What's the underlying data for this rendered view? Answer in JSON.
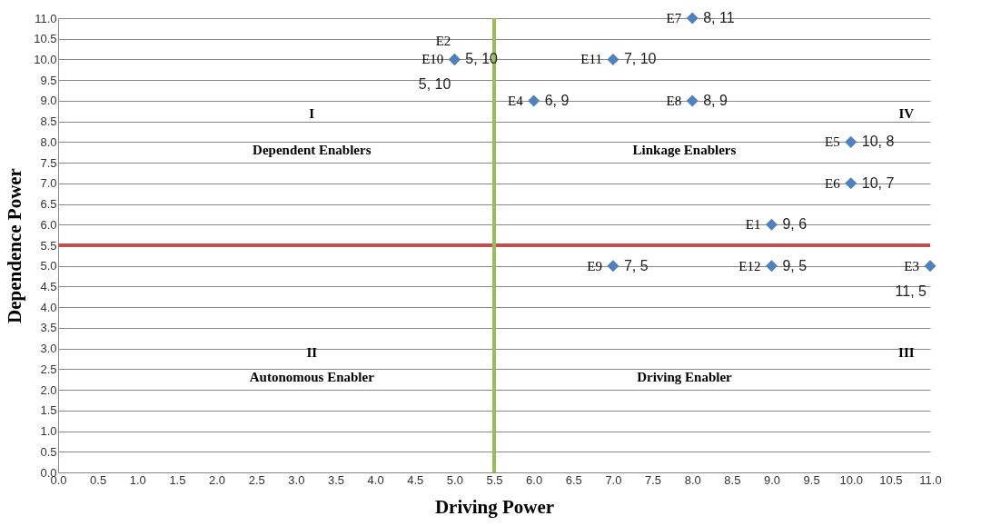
{
  "chart_data": {
    "type": "scatter",
    "xlabel": "Driving Power",
    "ylabel": "Dependence Power",
    "x": [
      5,
      5,
      7,
      8,
      6,
      8,
      10,
      10,
      9,
      7,
      9,
      11
    ],
    "values": [
      10,
      10,
      10,
      11,
      9,
      9,
      8,
      7,
      6,
      5,
      5,
      5
    ],
    "value_labels": [
      "5, 10",
      "5, 10",
      "7, 10",
      "8, 11",
      "6, 9",
      "8, 9",
      "10, 8",
      "10, 7",
      "9, 6",
      "7, 5",
      "9, 5",
      "11, 5"
    ],
    "color": "#4f81bd",
    "marker": "diamond",
    "grid": "y",
    "xlim": [
      0,
      11
    ],
    "ylim": [
      0,
      11
    ],
    "xticks": [
      {
        "value": 0,
        "label": "0.0"
      },
      {
        "value": 0.5,
        "label": "0.5"
      },
      {
        "value": 1,
        "label": "1.0"
      },
      {
        "value": 1.5,
        "label": "1.5"
      },
      {
        "value": 2,
        "label": "2.0"
      },
      {
        "value": 2.5,
        "label": "2.5"
      },
      {
        "value": 3,
        "label": "3.0"
      },
      {
        "value": 3.5,
        "label": "3.5"
      },
      {
        "value": 4,
        "label": "4.0"
      },
      {
        "value": 4.5,
        "label": "4.5"
      },
      {
        "value": 5,
        "label": "5.0"
      },
      {
        "value": 5.5,
        "label": "5.5"
      },
      {
        "value": 6,
        "label": "6.0"
      },
      {
        "value": 6.5,
        "label": "6.5"
      },
      {
        "value": 7,
        "label": "7.0"
      },
      {
        "value": 7.5,
        "label": "7.5"
      },
      {
        "value": 8,
        "label": "8.0"
      },
      {
        "value": 8.5,
        "label": "8.5"
      },
      {
        "value": 9,
        "label": "9.0"
      },
      {
        "value": 9.5,
        "label": "9.5"
      },
      {
        "value": 10,
        "label": "10.0"
      },
      {
        "value": 10.5,
        "label": "10.5"
      },
      {
        "value": 11,
        "label": "11.0"
      }
    ],
    "yticks": [
      {
        "value": 0,
        "label": "0.0"
      },
      {
        "value": 0.5,
        "label": "0.5"
      },
      {
        "value": 1,
        "label": "1.0"
      },
      {
        "value": 1.5,
        "label": "1.5"
      },
      {
        "value": 2,
        "label": "2.0"
      },
      {
        "value": 2.5,
        "label": "2.5"
      },
      {
        "value": 3,
        "label": "3.0"
      },
      {
        "value": 3.5,
        "label": "3.5"
      },
      {
        "value": 4,
        "label": "4.0"
      },
      {
        "value": 4.5,
        "label": "4.5"
      },
      {
        "value": 5,
        "label": "5.0"
      },
      {
        "value": 5.5,
        "label": "5.5"
      },
      {
        "value": 6,
        "label": "6.0"
      },
      {
        "value": 6.5,
        "label": "6.5"
      },
      {
        "value": 7,
        "label": "7.0"
      },
      {
        "value": 7.5,
        "label": "7.5"
      },
      {
        "value": 8,
        "label": "8.0"
      },
      {
        "value": 8.5,
        "label": "8.5"
      },
      {
        "value": 9,
        "label": "9.0"
      },
      {
        "value": 9.5,
        "label": "9.5"
      },
      {
        "value": 10,
        "label": "10.0"
      },
      {
        "value": 10.5,
        "label": "10.5"
      },
      {
        "value": 11,
        "label": "11.0"
      }
    ],
    "ref_lines": [
      {
        "axis": "y",
        "value": 5.5,
        "color": "#c0504d"
      },
      {
        "axis": "x",
        "value": 5.5,
        "color": "#9bbb59"
      }
    ],
    "annotations": [
      {
        "text": "E10",
        "x": 5,
        "y": 10
      },
      {
        "text": "E2",
        "x": 5,
        "y": 10
      },
      {
        "text": "E11",
        "x": 7,
        "y": 10
      },
      {
        "text": "E7",
        "x": 8,
        "y": 11
      },
      {
        "text": "E4",
        "x": 6,
        "y": 9
      },
      {
        "text": "E8",
        "x": 8,
        "y": 9
      },
      {
        "text": "E5",
        "x": 10,
        "y": 8
      },
      {
        "text": "E6",
        "x": 10,
        "y": 7
      },
      {
        "text": "E1",
        "x": 9,
        "y": 6
      },
      {
        "text": "E9",
        "x": 7,
        "y": 5
      },
      {
        "text": "E12",
        "x": 9,
        "y": 5
      },
      {
        "text": "E3",
        "x": 11,
        "y": 5
      },
      "I",
      "Dependent Enablers",
      "Linkage Enablers",
      "IV",
      "II",
      "Autonomous Enabler",
      "Driving  Enabler",
      "III"
    ]
  }
}
